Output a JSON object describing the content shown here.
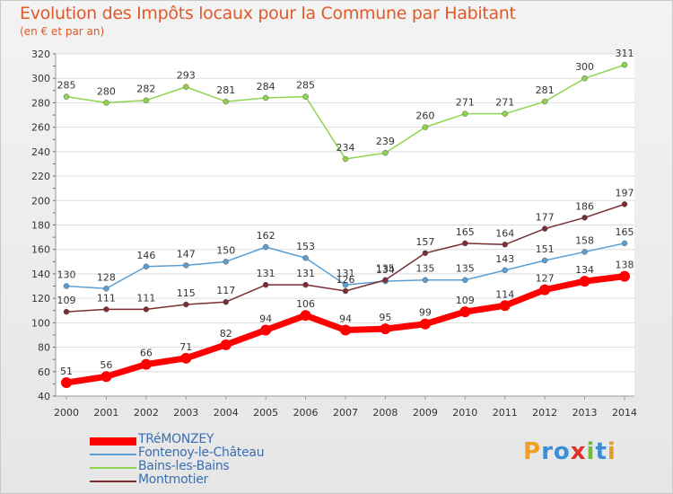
{
  "title": "Evolution des Impôts locaux pour la Commune par Habitant",
  "subtitle": "(en € et par an)",
  "logo": "Proxiti",
  "chart_data": {
    "type": "line",
    "title": "Evolution des Impôts locaux pour la Commune par Habitant",
    "subtitle": "(en € et par an)",
    "xlabel": "",
    "ylabel": "",
    "x": [
      "2000",
      "2001",
      "2002",
      "2003",
      "2004",
      "2005",
      "2006",
      "2007",
      "2008",
      "2009",
      "2010",
      "2011",
      "2012",
      "2013",
      "2014"
    ],
    "ylim": [
      40,
      320
    ],
    "yticks": [
      40,
      60,
      80,
      100,
      120,
      140,
      160,
      180,
      200,
      220,
      240,
      260,
      280,
      300,
      320
    ],
    "series": [
      {
        "name": "TRéMONZEY",
        "color": "#ff0000",
        "values": [
          51,
          56,
          66,
          71,
          82,
          94,
          106,
          94,
          95,
          99,
          109,
          114,
          127,
          134,
          138
        ]
      },
      {
        "name": "Fontenoy-le-Château",
        "color": "#5a9fd4",
        "values": [
          130,
          128,
          146,
          147,
          150,
          162,
          153,
          131,
          134,
          135,
          135,
          143,
          151,
          158,
          165
        ]
      },
      {
        "name": "Bains-les-Bains",
        "color": "#8fd44f",
        "values": [
          285,
          280,
          282,
          293,
          281,
          284,
          285,
          234,
          239,
          260,
          271,
          271,
          281,
          300,
          311
        ]
      },
      {
        "name": "Montmotier",
        "color": "#7a2e32",
        "values": [
          109,
          111,
          111,
          115,
          117,
          131,
          131,
          126,
          135,
          157,
          165,
          164,
          177,
          186,
          197
        ]
      }
    ]
  }
}
